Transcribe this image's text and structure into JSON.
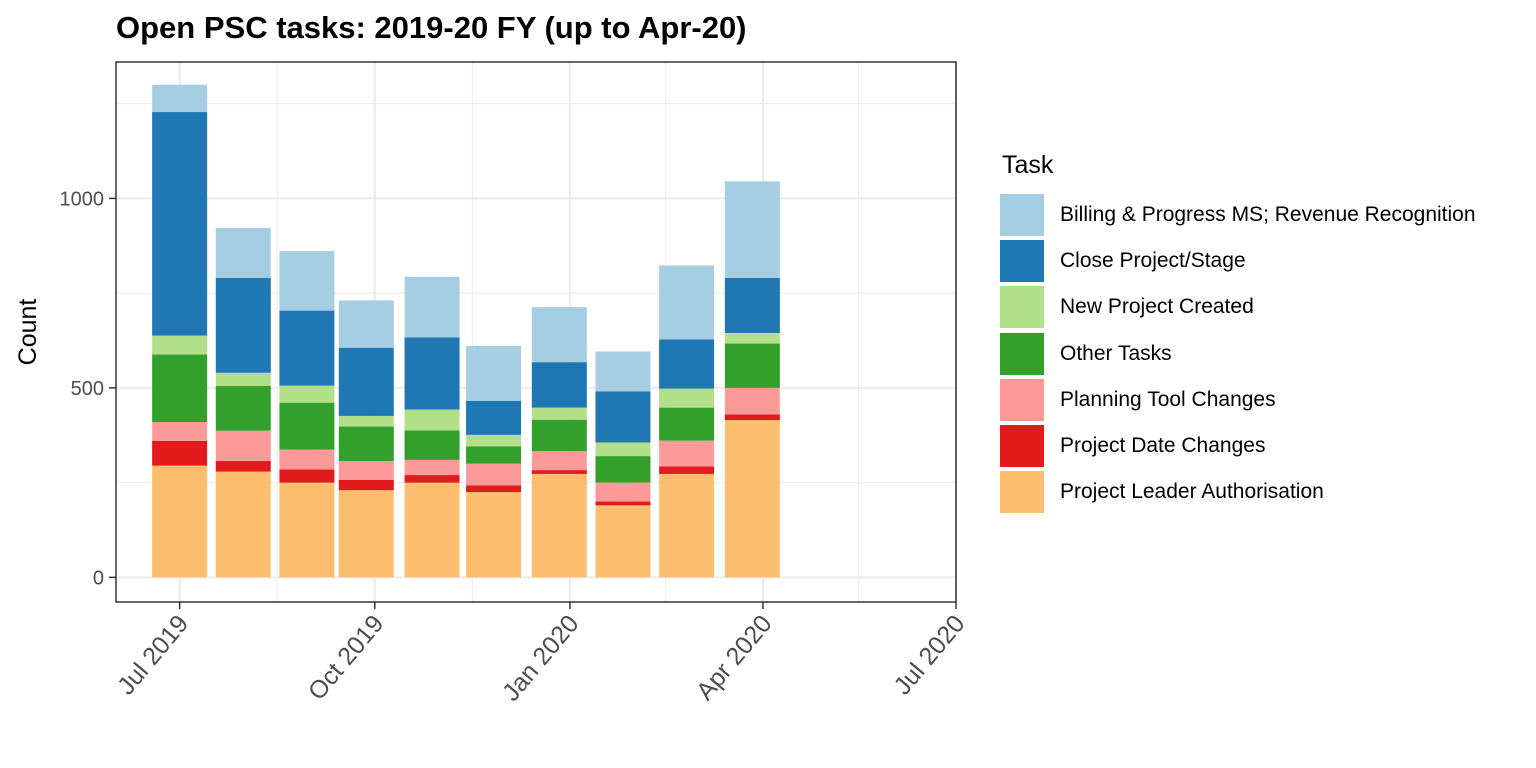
{
  "chart_data": {
    "type": "bar",
    "stacked": true,
    "title": "Open PSC tasks: 2019-20 FY (up to Apr-20)",
    "xlabel": "",
    "ylabel": "Count",
    "legend_title": "Task",
    "legend_position": "right",
    "grid": true,
    "x_axis_type": "date",
    "x_tick_labels": [
      "Jul 2019",
      "Oct 2019",
      "Jan 2020",
      "Apr 2020",
      "Jul 2020"
    ],
    "x_tick_dates": [
      "2019-07-01",
      "2019-10-01",
      "2020-01-01",
      "2020-04-01",
      "2020-07-01"
    ],
    "y_ticks": [
      0,
      500,
      1000
    ],
    "ylim": [
      -65,
      1360
    ],
    "xlim": [
      "2019-06-01",
      "2020-07-01"
    ],
    "categories": [
      "2019-07",
      "2019-08",
      "2019-09",
      "2019-10",
      "2019-11",
      "2019-12",
      "2020-01",
      "2020-02",
      "2020-03",
      "2020-04"
    ],
    "bar_dates": [
      "2019-06-31",
      "2019-07-31",
      "2019-08-30",
      "2019-09-27",
      "2019-10-28",
      "2019-11-26",
      "2019-12-27",
      "2020-01-26",
      "2020-02-25",
      "2020-03-27"
    ],
    "series": [
      {
        "name": "Project Leader Authorisation",
        "color": "#FDBF6F",
        "values": [
          295,
          279,
          250,
          230,
          250,
          225,
          273,
          190,
          273,
          415
        ]
      },
      {
        "name": "Project Date Changes",
        "color": "#E31A1C",
        "values": [
          65,
          28,
          35,
          27,
          20,
          18,
          10,
          10,
          20,
          15
        ]
      },
      {
        "name": "Planning Tool Changes",
        "color": "#FB9A99",
        "values": [
          50,
          80,
          52,
          50,
          40,
          57,
          50,
          50,
          68,
          70
        ]
      },
      {
        "name": "Other Tasks",
        "color": "#33A02C",
        "values": [
          178,
          118,
          124,
          91,
          78,
          46,
          83,
          70,
          87,
          117
        ]
      },
      {
        "name": "New Project Created",
        "color": "#B2DF8A",
        "values": [
          50,
          35,
          45,
          28,
          55,
          30,
          32,
          36,
          50,
          28
        ]
      },
      {
        "name": "Close Project/Stage",
        "color": "#1F78B4",
        "values": [
          590,
          250,
          198,
          180,
          190,
          90,
          120,
          135,
          130,
          145
        ]
      },
      {
        "name": "Billing & Progress MS; Revenue Recognition",
        "color": "#A6CEE3",
        "values": [
          72,
          132,
          157,
          125,
          160,
          145,
          145,
          105,
          195,
          255
        ]
      }
    ],
    "legend_order": [
      "Billing & Progress MS; Revenue Recognition",
      "Close Project/Stage",
      "New Project Created",
      "Other Tasks",
      "Planning Tool Changes",
      "Project Date Changes",
      "Project Leader Authorisation"
    ],
    "colors": {
      "panel_border": "#333333",
      "grid": "#EBEBEB",
      "axis_text": "#4D4D4D"
    }
  }
}
